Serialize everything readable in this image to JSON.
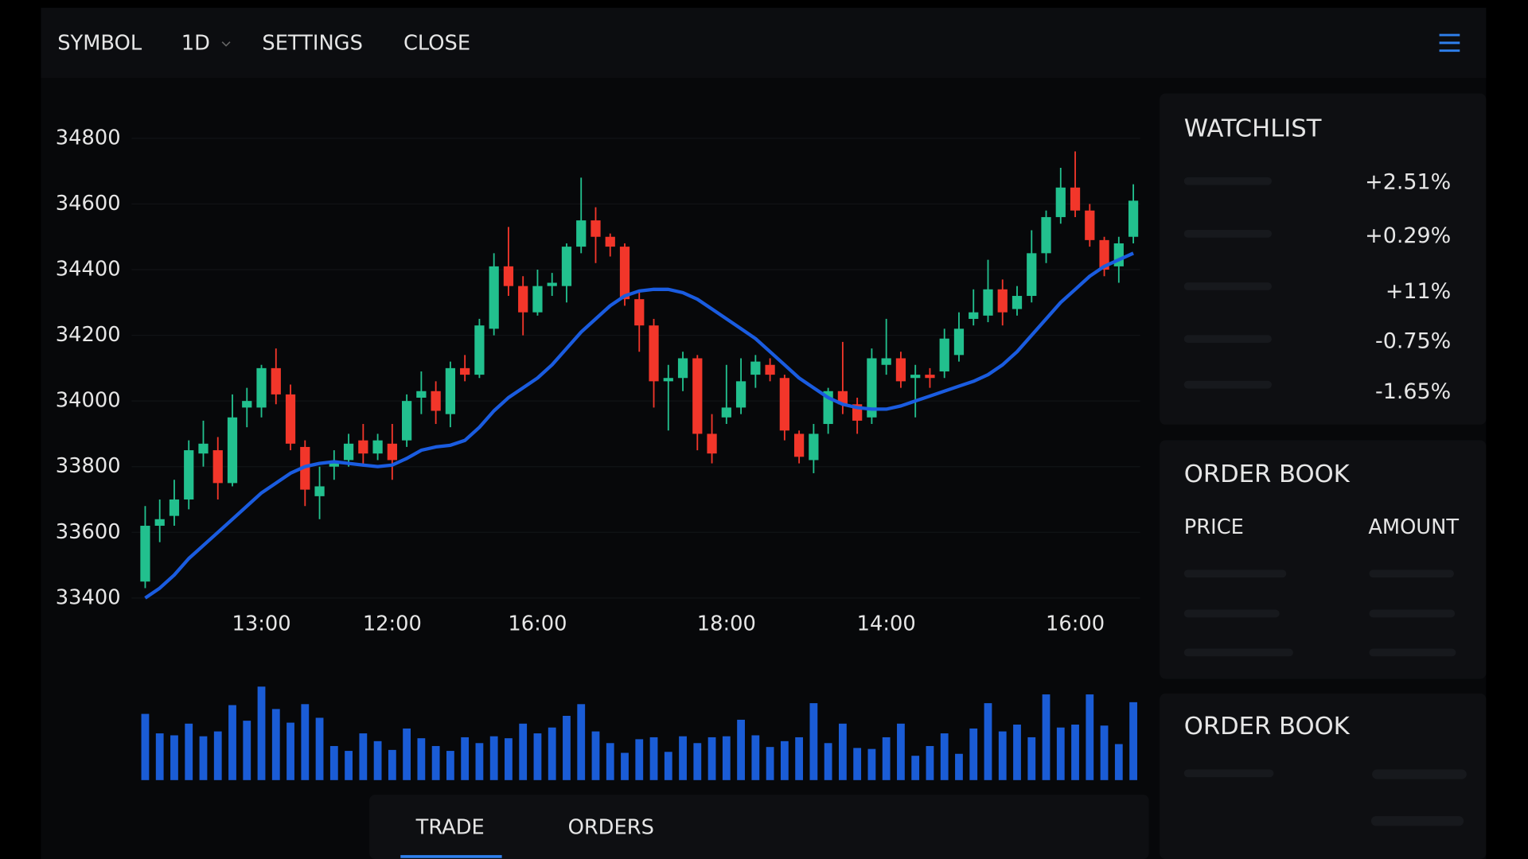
{
  "header": {
    "menu": [
      "SYMBOL",
      "1D",
      "SETTINGS",
      "CLOSE"
    ]
  },
  "chart_data": {
    "type": "candlestick",
    "categories": [
      null,
      null,
      null,
      null,
      null,
      null,
      null,
      null,
      "13:00",
      null,
      null,
      null,
      null,
      null,
      null,
      null,
      null,
      "12:00",
      null,
      null,
      null,
      null,
      null,
      null,
      null,
      null,
      null,
      "16:00",
      null,
      null,
      null,
      null,
      null,
      null,
      null,
      null,
      null,
      null,
      null,
      null,
      "18:00",
      null,
      null,
      null,
      null,
      null,
      null,
      null,
      null,
      null,
      null,
      "14:00",
      null,
      null,
      null,
      null,
      null,
      null,
      null,
      null,
      null,
      null,
      null,
      null,
      "16:00",
      null,
      null,
      null,
      null
    ],
    "open": [
      33450,
      33620,
      33650,
      33700,
      33840,
      33850,
      33750,
      33980,
      33980,
      34100,
      34020,
      33860,
      33710,
      33800,
      33820,
      33880,
      33840,
      33870,
      33880,
      34010,
      34030,
      33960,
      34100,
      34080,
      34220,
      34410,
      34350,
      34270,
      34350,
      34350,
      34470,
      34550,
      34500,
      34470,
      34310,
      34230,
      34060,
      34070,
      34130,
      33900,
      33950,
      33980,
      34080,
      34110,
      34070,
      33900,
      33820,
      33930,
      34030,
      33990,
      33950,
      34110,
      34130,
      34070,
      34080,
      34090,
      34140,
      34250,
      34260,
      34340,
      34280,
      34320,
      34450,
      34560,
      34650,
      34580,
      34490,
      34410,
      34500
    ],
    "high": [
      33680,
      33700,
      33760,
      33880,
      33940,
      33890,
      34020,
      34040,
      34110,
      34160,
      34050,
      33880,
      33800,
      33850,
      33900,
      33930,
      33900,
      33930,
      34020,
      34090,
      34060,
      34120,
      34140,
      34250,
      34450,
      34530,
      34380,
      34400,
      34390,
      34480,
      34680,
      34590,
      34510,
      34480,
      34330,
      34250,
      34110,
      34150,
      34140,
      33960,
      34110,
      34130,
      34140,
      34130,
      34080,
      33910,
      33930,
      34040,
      34180,
      34010,
      34160,
      34250,
      34150,
      34110,
      34100,
      34220,
      34270,
      34340,
      34430,
      34370,
      34350,
      34520,
      34580,
      34710,
      34760,
      34600,
      34500,
      34500,
      34660
    ],
    "low": [
      33430,
      33570,
      33620,
      33670,
      33800,
      33700,
      33740,
      33920,
      33950,
      33990,
      33850,
      33680,
      33640,
      33760,
      33800,
      33800,
      33820,
      33760,
      33860,
      33960,
      33930,
      33920,
      34060,
      34070,
      34200,
      34320,
      34200,
      34260,
      34320,
      34300,
      34450,
      34420,
      34440,
      34290,
      34150,
      33980,
      33910,
      34030,
      33850,
      33810,
      33930,
      33960,
      34040,
      34060,
      33880,
      33810,
      33780,
      33900,
      33960,
      33900,
      33930,
      34080,
      34040,
      33950,
      34040,
      34070,
      34120,
      34230,
      34240,
      34230,
      34260,
      34300,
      34420,
      34540,
      34560,
      34470,
      34380,
      34360,
      34480
    ],
    "close": [
      33620,
      33640,
      33700,
      33850,
      33870,
      33750,
      33950,
      34000,
      34100,
      34020,
      33870,
      33730,
      33740,
      33810,
      33870,
      33840,
      33880,
      33820,
      34000,
      34030,
      33970,
      34100,
      34080,
      34230,
      34410,
      34350,
      34270,
      34350,
      34360,
      34470,
      34550,
      34500,
      34470,
      34310,
      34230,
      34060,
      34070,
      34130,
      33900,
      33840,
      33980,
      34060,
      34120,
      34080,
      33910,
      33830,
      33900,
      34030,
      33990,
      33940,
      34130,
      34130,
      34060,
      34080,
      34070,
      34190,
      34220,
      34270,
      34340,
      34270,
      34320,
      34450,
      34560,
      34650,
      34580,
      34490,
      34400,
      34480,
      34610
    ],
    "up_color": "#22c08e",
    "down_color": "#f2362a",
    "moving_average": {
      "color": "#1a5ce0",
      "values": [
        33400,
        33430,
        33470,
        33520,
        33560,
        33600,
        33640,
        33680,
        33720,
        33750,
        33780,
        33800,
        33810,
        33815,
        33810,
        33805,
        33800,
        33805,
        33825,
        33850,
        33860,
        33865,
        33880,
        33920,
        33970,
        34010,
        34040,
        34070,
        34110,
        34160,
        34210,
        34250,
        34290,
        34320,
        34335,
        34340,
        34340,
        34330,
        34310,
        34280,
        34250,
        34220,
        34190,
        34150,
        34110,
        34070,
        34040,
        34010,
        33990,
        33980,
        33975,
        33975,
        33985,
        34000,
        34015,
        34030,
        34045,
        34060,
        34080,
        34110,
        34150,
        34200,
        34250,
        34300,
        34340,
        34380,
        34410,
        34430,
        34450
      ]
    },
    "volume": {
      "color": "#1a5cd6",
      "values": [
        68,
        48,
        46,
        58,
        45,
        50,
        77,
        61,
        96,
        73,
        59,
        78,
        64,
        35,
        30,
        48,
        40,
        31,
        53,
        43,
        35,
        30,
        44,
        38,
        45,
        43,
        58,
        48,
        54,
        66,
        78,
        50,
        38,
        28,
        42,
        44,
        29,
        45,
        38,
        44,
        45,
        62,
        46,
        34,
        40,
        44,
        79,
        38,
        58,
        33,
        32,
        44,
        58,
        25,
        35,
        48,
        27,
        53,
        79,
        50,
        57,
        44,
        88,
        54,
        57,
        88,
        56,
        37,
        80
      ]
    },
    "ylim": [
      33400,
      34800
    ],
    "yticks": [
      33400,
      33600,
      33800,
      34000,
      34200,
      34400,
      34600,
      34800
    ],
    "grid": true
  },
  "watchlist": {
    "title": "WATCHLIST",
    "changes": [
      {
        "text": "+2.51%",
        "color": "#2f80ed"
      },
      {
        "text": "+0.29%",
        "color": "#2f80ed"
      },
      {
        "text": "+11%",
        "color": "#2f80ed"
      },
      {
        "text": "-0.75%",
        "color": "#ec3b30"
      },
      {
        "text": "-1.65%",
        "color": "#ec3b30"
      }
    ]
  },
  "order_book": {
    "title": "ORDER BOOK",
    "columns": [
      "PRICE",
      "AMOUNT"
    ]
  },
  "order_book_2": {
    "title": "ORDER BOOK"
  },
  "tabs": [
    "TRADE",
    "ORDERS"
  ]
}
